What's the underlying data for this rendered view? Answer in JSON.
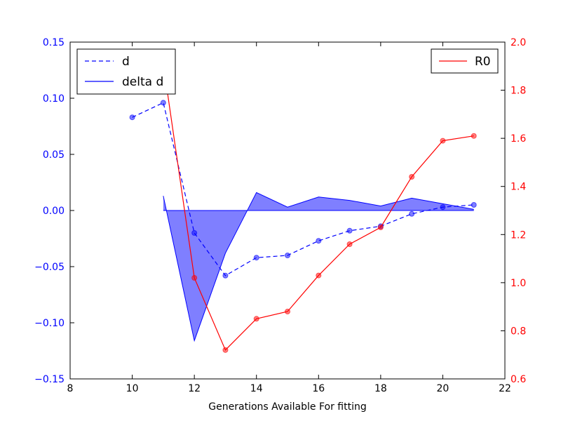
{
  "chart_data": {
    "type": "line",
    "xlabel": "Generations Available For fitting",
    "xlim": [
      8,
      22
    ],
    "xticks": [
      8,
      10,
      12,
      14,
      16,
      18,
      20,
      22
    ],
    "left_axis": {
      "ylim": [
        -0.15,
        0.15
      ],
      "ticks": [
        0.15,
        0.1,
        0.05,
        0.0,
        -0.05,
        -0.1,
        -0.15
      ],
      "tick_labels": [
        "0.15",
        "0.10",
        "0.05",
        "0.00",
        "−0.05",
        "−0.10",
        "−0.15"
      ],
      "color": "#0000ff"
    },
    "right_axis": {
      "ylim": [
        0.6,
        2.0
      ],
      "ticks": [
        2.0,
        1.8,
        1.6,
        1.4,
        1.2,
        1.0,
        0.8,
        0.6
      ],
      "tick_labels": [
        "2.0",
        "1.8",
        "1.6",
        "1.4",
        "1.2",
        "1.0",
        "0.8",
        "0.6"
      ],
      "color": "#ff0000"
    },
    "series": [
      {
        "name": "d",
        "axis": "left",
        "style": "dashed",
        "color": "#0000ff",
        "x": [
          10,
          11,
          12,
          13,
          14,
          15,
          16,
          17,
          18,
          19,
          20,
          21
        ],
        "values": [
          0.083,
          0.096,
          -0.02,
          -0.058,
          -0.042,
          -0.04,
          -0.027,
          -0.018,
          -0.014,
          -0.003,
          0.003,
          0.005
        ]
      },
      {
        "name": "delta d",
        "axis": "left",
        "style": "filled",
        "color": "#0000ff",
        "x": [
          11,
          12,
          13,
          14,
          15,
          16,
          17,
          18,
          19,
          20,
          21
        ],
        "values": [
          0.013,
          -0.116,
          -0.038,
          0.016,
          0.003,
          0.012,
          0.009,
          0.004,
          0.011,
          0.006,
          0.001
        ]
      },
      {
        "name": "R0",
        "axis": "right",
        "style": "solid",
        "color": "#ff0000",
        "x": [
          10,
          11,
          12,
          13,
          14,
          15,
          16,
          17,
          18,
          19,
          20,
          21
        ],
        "values": [
          1.83,
          1.91,
          1.02,
          0.72,
          0.85,
          0.88,
          1.03,
          1.16,
          1.23,
          1.44,
          1.59,
          1.61
        ]
      }
    ],
    "legends": [
      {
        "placement": "top-left",
        "entries": [
          "d",
          "delta d"
        ]
      },
      {
        "placement": "top-right",
        "entries": [
          "R0"
        ]
      }
    ],
    "grid": false
  }
}
